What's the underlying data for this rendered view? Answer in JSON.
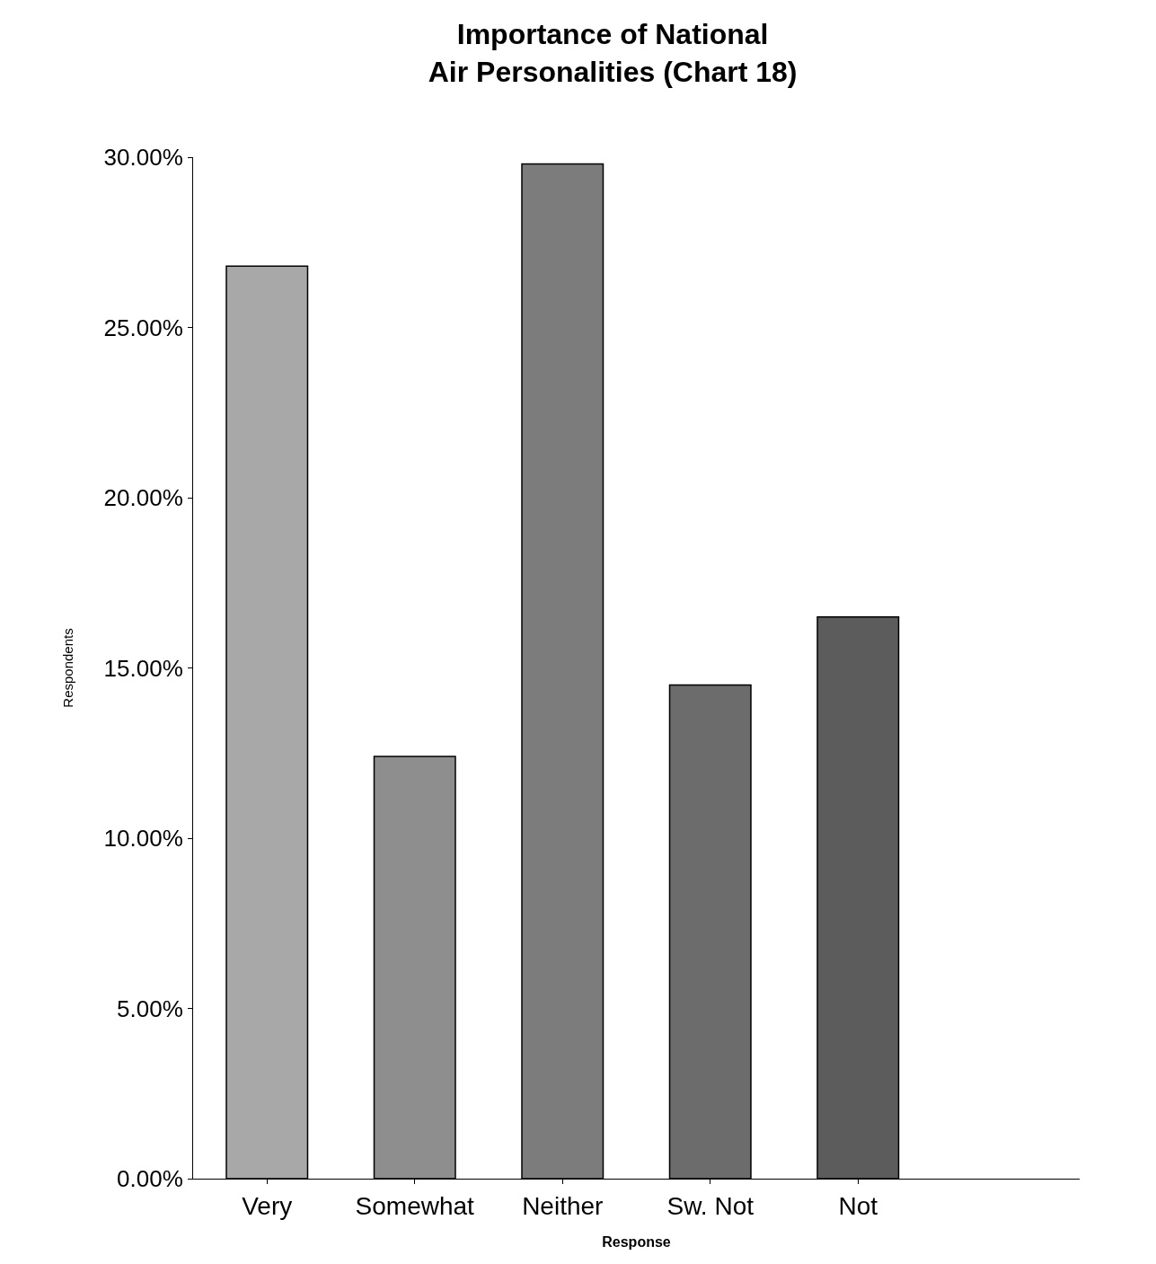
{
  "chart_data": {
    "type": "bar",
    "title": "Importance of National\nAir Personalities (Chart 18)",
    "xlabel": "Response",
    "ylabel": "Respondents",
    "categories": [
      "Very",
      "Somewhat",
      "Neither",
      "Sw. Not",
      "Not",
      null
    ],
    "values": [
      26.8,
      12.4,
      29.8,
      14.5,
      16.5,
      null
    ],
    "colors": [
      "#a8a8a8",
      "#8e8e8e",
      "#7c7c7c",
      "#6c6c6c",
      "#5c5c5c",
      "#5c5c5c"
    ],
    "ylim": [
      0,
      30
    ],
    "yticks": [
      {
        "value": 0,
        "label": "0.00%"
      },
      {
        "value": 5,
        "label": "5.00%"
      },
      {
        "value": 10,
        "label": "10.00%"
      },
      {
        "value": 15,
        "label": "15.00%"
      },
      {
        "value": 20,
        "label": "20.00%"
      },
      {
        "value": 25,
        "label": "25.00%"
      },
      {
        "value": 30,
        "label": "30.00%"
      }
    ]
  }
}
